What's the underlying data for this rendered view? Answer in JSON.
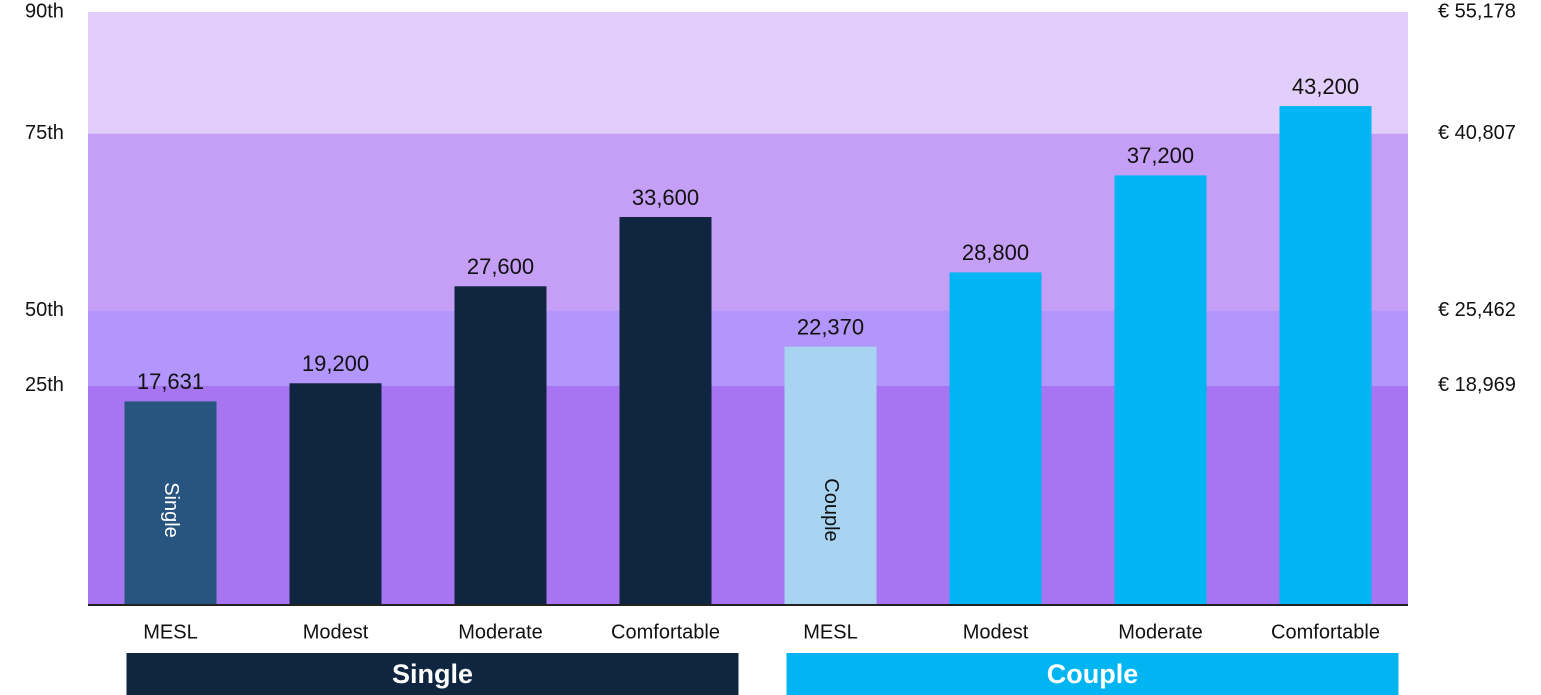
{
  "chart_data": {
    "type": "bar",
    "ylim": [
      0,
      51350
    ],
    "bands": [
      {
        "name": "25th",
        "value": 18969,
        "label": "€ 18,969",
        "color": "#a775f2"
      },
      {
        "name": "50th",
        "value": 25462,
        "label": "€ 25,462",
        "color": "#b296fb"
      },
      {
        "name": "75th",
        "value": 40807,
        "label": "€ 40,807",
        "color": "#c59ff6"
      },
      {
        "name": "90th",
        "value": 55178,
        "label": "€ 55,178",
        "color": "#e1cefb"
      }
    ],
    "groups": [
      {
        "label": "Single",
        "color": "#0f2540",
        "categories": [
          "MESL",
          "Modest",
          "Moderate",
          "Comfortable"
        ],
        "values": [
          17631,
          19200,
          27600,
          33600
        ],
        "value_labels": [
          "17,631",
          "19,200",
          "27,600",
          "33,600"
        ],
        "colors": [
          "#28557f",
          "#0f2540",
          "#0f2540",
          "#0f2540"
        ]
      },
      {
        "label": "Couple",
        "color": "#00b5f2",
        "categories": [
          "MESL",
          "Modest",
          "Moderate",
          "Comfortable"
        ],
        "values": [
          22370,
          28800,
          37200,
          43200
        ],
        "value_labels": [
          "22,370",
          "28,800",
          "37,200",
          "43,200"
        ],
        "colors": [
          "#a8d4f2",
          "#00b5f2",
          "#00b5f2",
          "#00b5f2"
        ]
      }
    ]
  }
}
